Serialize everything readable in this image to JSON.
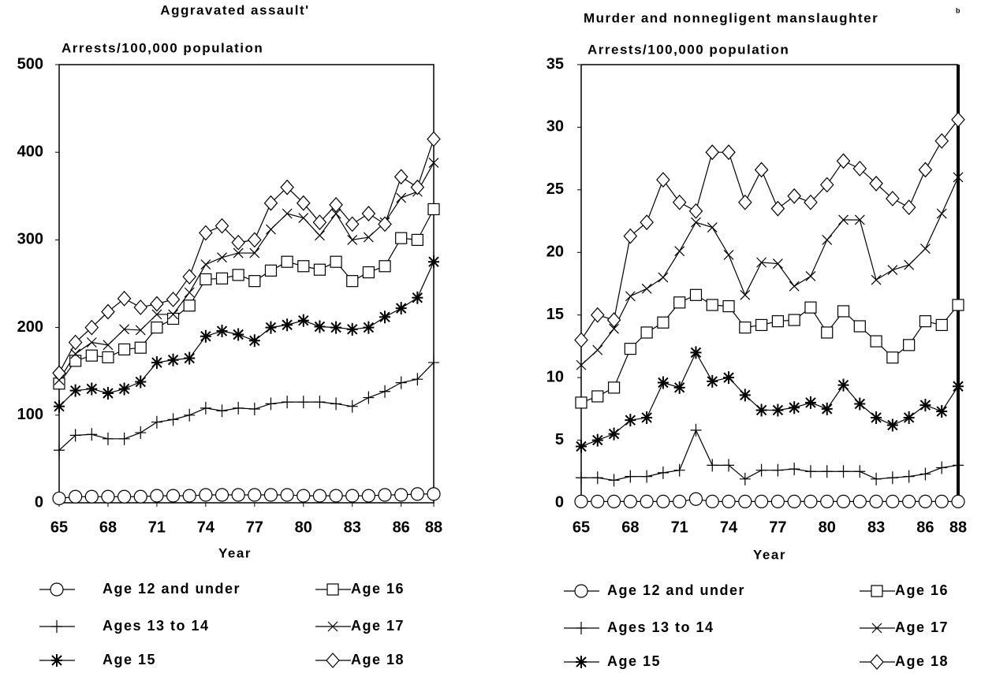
{
  "chart_data": [
    {
      "type": "line",
      "title": "Aggravated assault'",
      "ylabel": "Arrests/100,000 population",
      "xlabel": "Year",
      "x": [
        65,
        66,
        67,
        68,
        69,
        70,
        71,
        72,
        73,
        74,
        75,
        76,
        77,
        78,
        79,
        80,
        81,
        82,
        83,
        84,
        85,
        86,
        87,
        88
      ],
      "xlim": [
        65,
        88
      ],
      "xticks": [
        65,
        68,
        71,
        74,
        77,
        80,
        83,
        86,
        88
      ],
      "ylim": [
        0,
        500
      ],
      "yticks": [
        0,
        100,
        200,
        300,
        400,
        500
      ],
      "series": [
        {
          "name": "Age 12 and under",
          "color": "#000000",
          "marker": "circle",
          "values": [
            5,
            7,
            7,
            7,
            7,
            7,
            8,
            8,
            8,
            9,
            9,
            9,
            9,
            9,
            9,
            8,
            8,
            8,
            8,
            8,
            9,
            9,
            10,
            10
          ]
        },
        {
          "name": "Ages 13 to 14",
          "color": "#000000",
          "marker": "plus",
          "values": [
            60,
            77,
            78,
            73,
            73,
            80,
            92,
            95,
            100,
            108,
            105,
            108,
            107,
            113,
            115,
            115,
            115,
            113,
            110,
            120,
            127,
            137,
            141,
            160
          ]
        },
        {
          "name": "Age 15",
          "color": "#000000",
          "marker": "asterisk",
          "values": [
            110,
            128,
            130,
            125,
            130,
            138,
            160,
            163,
            165,
            190,
            196,
            192,
            185,
            200,
            203,
            208,
            201,
            200,
            198,
            200,
            212,
            222,
            234,
            275
          ]
        },
        {
          "name": "Age 16",
          "color": "#000000",
          "marker": "square",
          "values": [
            136,
            162,
            168,
            166,
            175,
            177,
            200,
            210,
            225,
            255,
            256,
            260,
            253,
            265,
            275,
            270,
            266,
            275,
            253,
            263,
            270,
            302,
            300,
            335
          ]
        },
        {
          "name": "Age 17",
          "color": "#000000",
          "marker": "x",
          "values": [
            140,
            170,
            183,
            180,
            198,
            197,
            215,
            215,
            240,
            272,
            280,
            285,
            285,
            312,
            330,
            325,
            305,
            330,
            300,
            303,
            320,
            348,
            355,
            388
          ]
        },
        {
          "name": "Age 18",
          "color": "#000000",
          "marker": "diamond",
          "values": [
            148,
            183,
            200,
            218,
            233,
            223,
            227,
            232,
            258,
            308,
            316,
            297,
            300,
            342,
            360,
            342,
            320,
            340,
            318,
            330,
            318,
            372,
            360,
            415
          ]
        }
      ]
    },
    {
      "type": "line",
      "title": "Murder and nonnegligent manslaughter",
      "title_note": "b",
      "ylabel": "Arrests/100,000 population",
      "xlabel": "Year",
      "x": [
        65,
        66,
        67,
        68,
        69,
        70,
        71,
        72,
        73,
        74,
        75,
        76,
        77,
        78,
        79,
        80,
        81,
        82,
        83,
        84,
        85,
        86,
        87,
        88
      ],
      "xlim": [
        65,
        88
      ],
      "xticks": [
        65,
        68,
        71,
        74,
        77,
        80,
        83,
        86,
        88
      ],
      "ylim": [
        0,
        35
      ],
      "yticks": [
        0,
        5,
        10,
        15,
        20,
        25,
        30,
        35
      ],
      "series": [
        {
          "name": "Age 12 and under",
          "color": "#000000",
          "marker": "circle",
          "values": [
            0.1,
            0.1,
            0.1,
            0.1,
            0.1,
            0.1,
            0.1,
            0.3,
            0.1,
            0.1,
            0.1,
            0.1,
            0.1,
            0.1,
            0.1,
            0.1,
            0.1,
            0.1,
            0.1,
            0.1,
            0.1,
            0.1,
            0.1,
            0.1
          ]
        },
        {
          "name": "Ages 13 to 14",
          "color": "#000000",
          "marker": "plus",
          "values": [
            2,
            2,
            1.8,
            2.1,
            2.1,
            2.4,
            2.6,
            5.8,
            3,
            3,
            1.9,
            2.6,
            2.6,
            2.7,
            2.5,
            2.5,
            2.5,
            2.5,
            1.9,
            2,
            2.1,
            2.3,
            2.8,
            3
          ]
        },
        {
          "name": "Age 15",
          "color": "#000000",
          "marker": "asterisk",
          "values": [
            4.5,
            5,
            5.5,
            6.6,
            6.8,
            9.6,
            9.2,
            12,
            9.7,
            10,
            8.6,
            7.4,
            7.4,
            7.6,
            8,
            7.5,
            9.4,
            7.9,
            6.8,
            6.2,
            6.8,
            7.8,
            7.3,
            9.3
          ]
        },
        {
          "name": "Age 16",
          "color": "#000000",
          "marker": "square",
          "values": [
            8,
            8.5,
            9.2,
            12.3,
            13.6,
            14.4,
            16,
            16.6,
            15.8,
            15.7,
            14,
            14.2,
            14.5,
            14.6,
            15.6,
            13.6,
            15.3,
            14.1,
            12.9,
            11.6,
            12.6,
            14.5,
            14.2,
            15.8
          ]
        },
        {
          "name": "Age 17",
          "color": "#000000",
          "marker": "x",
          "values": [
            11,
            12.2,
            13.9,
            16.5,
            17.1,
            18,
            20.1,
            22.4,
            22,
            19.8,
            16.6,
            19.2,
            19.1,
            17.3,
            18.1,
            21,
            22.6,
            22.6,
            17.8,
            18.6,
            19,
            20.3,
            23.1,
            26
          ]
        },
        {
          "name": "Age 18",
          "color": "#000000",
          "marker": "diamond",
          "values": [
            13,
            15,
            14.6,
            21.3,
            22.4,
            25.8,
            24,
            23.3,
            28,
            28,
            24,
            26.6,
            23.5,
            24.5,
            24,
            25.4,
            27.3,
            26.7,
            25.5,
            24.3,
            23.6,
            26.6,
            28.9,
            30.6
          ]
        }
      ]
    }
  ]
}
